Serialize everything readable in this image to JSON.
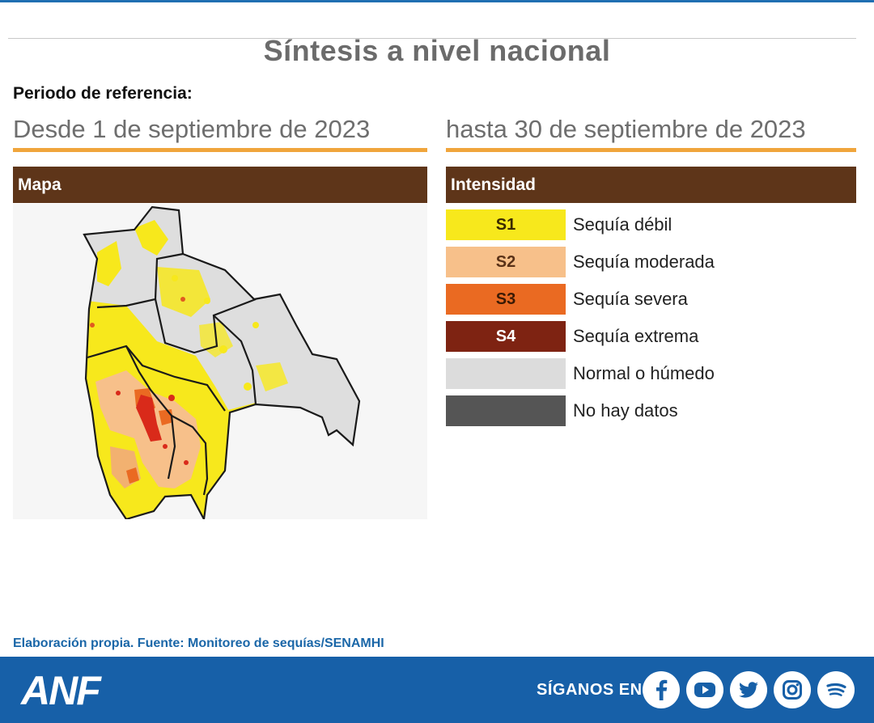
{
  "title": "Síntesis a nivel nacional",
  "reference": {
    "label": "Periodo de referencia:",
    "from": "Desde 1 de septiembre de 2023",
    "to": "hasta 30 de septiembre de 2023"
  },
  "sections": {
    "map": "Mapa",
    "intensity": "Intensidad"
  },
  "legend": [
    {
      "code": "S1",
      "label": "Sequía débil",
      "color": "#f7e81c",
      "text_color": "#3a2a00"
    },
    {
      "code": "S2",
      "label": "Sequía moderada",
      "color": "#f7c08a",
      "text_color": "#5a3218"
    },
    {
      "code": "S3",
      "label": "Sequía severa",
      "color": "#ea6a22",
      "text_color": "#3a1a05"
    },
    {
      "code": "S4",
      "label": "Sequía extrema",
      "color": "#7e2312",
      "text_color": "#ffffff"
    },
    {
      "code": "",
      "label": "Normal o húmedo",
      "color": "#dcdcdc",
      "text_color": "#222222"
    },
    {
      "code": "",
      "label": "No hay datos",
      "color": "#555555",
      "text_color": "#ffffff"
    }
  ],
  "source": "Elaboración propia. Fuente: Monitoreo de sequías/SENAMHI",
  "footer": {
    "logo": "ANF",
    "follow": "SÍGANOS EN:",
    "social": [
      "facebook-icon",
      "youtube-icon",
      "twitter-icon",
      "instagram-icon",
      "spotify-icon"
    ]
  },
  "colors": {
    "accent": "#f0a53c",
    "header_bar": "#5e3519",
    "footer": "#1760a8"
  }
}
